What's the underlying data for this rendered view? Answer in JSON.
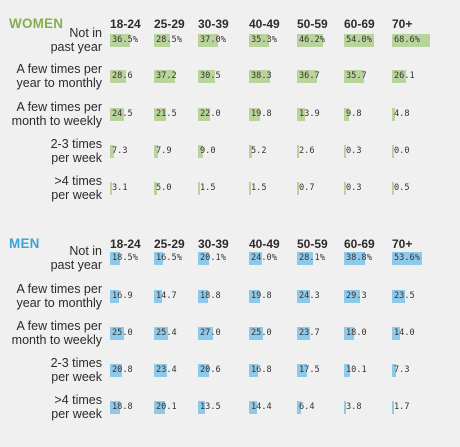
{
  "colors": {
    "women": "#84b04f",
    "women_bar": "#b9d49a",
    "men": "#3ba3d8",
    "men_bar": "#8fc9ea"
  },
  "chart_data": [
    {
      "type": "table",
      "title": "WOMEN",
      "categories": [
        "18-24",
        "25-29",
        "30-39",
        "40-49",
        "50-59",
        "60-69",
        "70+"
      ],
      "series": [
        {
          "name": "Not in past year",
          "values": [
            "36.5%",
            "28.5%",
            "37.0%",
            "35.3%",
            "46.2%",
            "54.0%",
            "68.6%"
          ]
        },
        {
          "name": "A few times per year to monthly",
          "values": [
            "28.6",
            "37.2",
            "30.5",
            "38.3",
            "36.7",
            "35.7",
            "26.1"
          ]
        },
        {
          "name": "A few times per month to weekly",
          "values": [
            "24.5",
            "21.5",
            "22.0",
            "19.8",
            "13.9",
            "9.8",
            "4.8"
          ]
        },
        {
          "name": "2-3 times per week",
          "values": [
            "7.3",
            "7.9",
            "9.0",
            "5.2",
            "2.6",
            "0.3",
            "0.0"
          ]
        },
        {
          "name": ">4 times per week",
          "values": [
            "3.1",
            "5.0",
            "1.5",
            "1.5",
            "0.7",
            "0.3",
            "0.5"
          ]
        }
      ]
    },
    {
      "type": "table",
      "title": "MEN",
      "categories": [
        "18-24",
        "25-29",
        "30-39",
        "40-49",
        "50-59",
        "60-69",
        "70+"
      ],
      "series": [
        {
          "name": "Not in past year",
          "values": [
            "18.5%",
            "16.5%",
            "20.1%",
            "24.0%",
            "28.1%",
            "38.8%",
            "53.6%"
          ]
        },
        {
          "name": "A few times per year to monthly",
          "values": [
            "16.9",
            "14.7",
            "18.8",
            "19.8",
            "24.3",
            "29.3",
            "23.5"
          ]
        },
        {
          "name": "A few times per month to weekly",
          "values": [
            "25.0",
            "25.4",
            "27.0",
            "25.0",
            "23.7",
            "18.0",
            "14.0"
          ]
        },
        {
          "name": "2-3 times per week",
          "values": [
            "20.8",
            "23.4",
            "20.6",
            "16.8",
            "17.5",
            "10.1",
            "7.3"
          ]
        },
        {
          "name": ">4 times per week",
          "values": [
            "18.8",
            "20.1",
            "13.5",
            "14.4",
            "6.4",
            "3.8",
            "1.7"
          ]
        }
      ]
    }
  ],
  "row_labels": [
    [
      "Not in",
      "past year"
    ],
    [
      "A few times per",
      "year to monthly"
    ],
    [
      "A few times per",
      "month to weekly"
    ],
    [
      "2-3 times",
      "per week"
    ],
    [
      ">4 times",
      "per week"
    ]
  ]
}
